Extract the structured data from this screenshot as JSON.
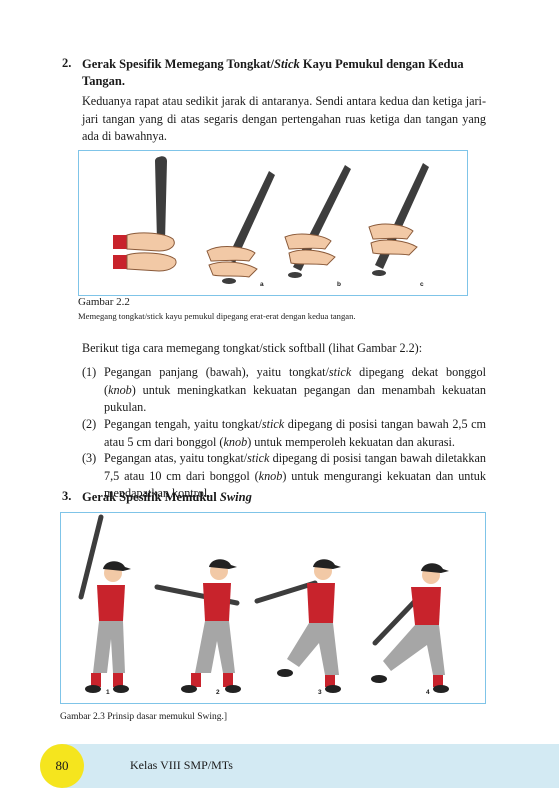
{
  "section2": {
    "number": "2.",
    "title_line1_pre": "Gerak Spesifik Memegang Tongkat/",
    "title_line1_italic": "Stick",
    "title_line1_post": " Kayu Pemukul dengan Kedua",
    "title_line2": "Tangan.",
    "paragraph": "Keduanya rapat atau sedikit jarak di antaranya. Sendi antara kedua dan ketiga jari-jari tangan yang di atas segaris dengan pertengahan ruas ketiga dan tangan yang ada di bawahnya."
  },
  "figure22": {
    "labels": [
      "a",
      "b",
      "c"
    ],
    "caption_title": "Gambar 2.2",
    "caption_text": "Memegang tongkat/stick kayu pemukul dipegang erat-erat dengan kedua tangan."
  },
  "intro": "Berikut tiga cara memegang tongkat/stick softball (lihat Gambar 2.2):",
  "list": [
    {
      "marker": "(1)",
      "parts": [
        "Pegangan panjang (bawah), yaitu tongkat/",
        "stick",
        " dipegang dekat bonggol (",
        "knob",
        ") untuk meningkatkan kekuatan pegangan dan menambah kekuatan pukulan."
      ]
    },
    {
      "marker": "(2)",
      "parts": [
        "Pegangan tengah, yaitu tongkat/",
        "stick",
        " dipegang di posisi tangan bawah 2,5 cm atau 5 cm dari bonggol (",
        "knob",
        ") untuk memperoleh kekuatan dan akurasi."
      ]
    },
    {
      "marker": "(3)",
      "parts": [
        "Pegangan atas, yaitu tongkat/",
        "stick",
        " dipegang di posisi tangan bawah diletakkan 7,5 atau 10 cm dari bonggol (",
        "knob",
        ") untuk mengurangi kekuatan dan untuk mendapatkan kontrol."
      ]
    }
  ],
  "section3": {
    "number": "3.",
    "title_pre": "Gerak Spesifik Memukul ",
    "title_italic": "Swing"
  },
  "figure23": {
    "labels": [
      "1",
      "2",
      "3",
      "4"
    ],
    "caption": "Gambar 2.3 Prinsip dasar memukul Swing.]"
  },
  "footer": {
    "page_number": "80",
    "book_title": "Kelas VIII SMP/MTs"
  },
  "colors": {
    "accent_border": "#7fc4e8",
    "footer_band": "#d3eaf3",
    "page_badge": "#f5e51e",
    "jersey": "#c8232c",
    "pants": "#a6a6a6",
    "bat": "#3d3d3d"
  }
}
